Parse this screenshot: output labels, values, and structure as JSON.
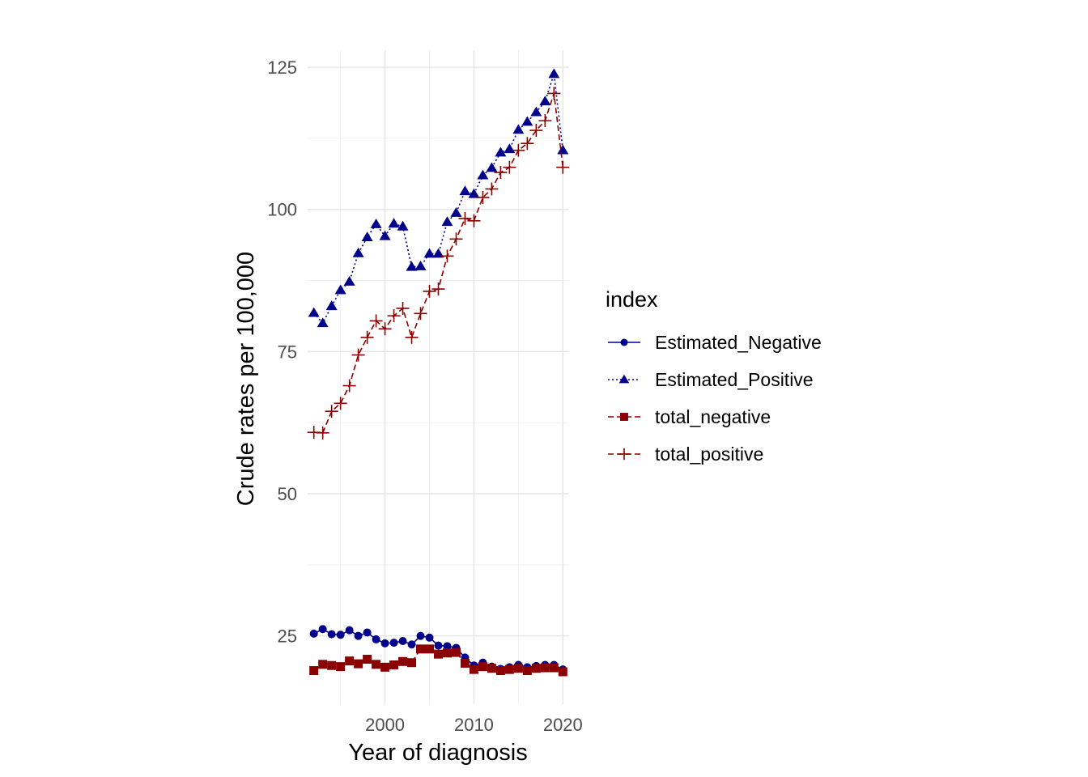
{
  "chart_data": {
    "type": "line",
    "xlabel": "Year of diagnosis",
    "ylabel": "Crude rates per 100,000",
    "xlim": [
      1991.3,
      2020.7
    ],
    "ylim": [
      13,
      128
    ],
    "x_ticks": [
      2000,
      2010,
      2020
    ],
    "y_ticks": [
      25,
      50,
      75,
      100,
      125
    ],
    "grid": true,
    "legend": {
      "title": "index",
      "position": "right",
      "entries": [
        "Estimated_Negative",
        "Estimated_Positive",
        "total_negative",
        "total_positive"
      ]
    },
    "x": [
      1992,
      1993,
      1994,
      1995,
      1996,
      1997,
      1998,
      1999,
      2000,
      2001,
      2002,
      2003,
      2004,
      2005,
      2006,
      2007,
      2008,
      2009,
      2010,
      2011,
      2012,
      2013,
      2014,
      2015,
      2016,
      2017,
      2018,
      2019,
      2020
    ],
    "series": [
      {
        "name": "Estimated_Negative",
        "color": "#00008B",
        "marker": "circle",
        "line": "solid",
        "values": [
          25.4,
          26.2,
          25.3,
          25.2,
          26.0,
          25.0,
          25.6,
          24.4,
          23.7,
          23.8,
          24.1,
          23.5,
          25.0,
          24.7,
          23.3,
          23.2,
          22.9,
          21.2,
          19.8,
          20.3,
          19.6,
          19.2,
          19.5,
          19.9,
          19.5,
          19.7,
          19.9,
          19.9,
          19.1
        ]
      },
      {
        "name": "Estimated_Positive",
        "color": "#00008B",
        "marker": "triangle",
        "line": "dotted",
        "values": [
          81.8,
          80.0,
          83.0,
          85.8,
          87.3,
          92.3,
          95.1,
          97.4,
          95.3,
          97.5,
          97.0,
          89.9,
          90.0,
          92.2,
          92.2,
          97.8,
          99.4,
          103.2,
          102.7,
          106.0,
          107.3,
          110.0,
          110.6,
          114.0,
          115.4,
          117.1,
          119.0,
          123.8,
          110.4
        ]
      },
      {
        "name": "total_negative",
        "color": "#8B0000",
        "marker": "square",
        "line": "dashed",
        "values": [
          18.9,
          20.0,
          19.8,
          19.6,
          20.6,
          20.1,
          20.9,
          20.0,
          19.5,
          19.9,
          20.5,
          20.3,
          22.7,
          22.7,
          21.8,
          22.0,
          22.1,
          20.2,
          19.1,
          19.6,
          19.3,
          18.9,
          19.1,
          19.3,
          18.9,
          19.3,
          19.4,
          19.4,
          18.7
        ]
      },
      {
        "name": "total_positive",
        "color": "#8B0000",
        "marker": "plus",
        "line": "dashed",
        "values": [
          60.8,
          60.7,
          64.5,
          65.9,
          69.0,
          74.4,
          77.5,
          80.4,
          79.0,
          81.3,
          82.6,
          77.5,
          81.7,
          85.6,
          86.0,
          91.8,
          94.8,
          98.4,
          98.0,
          102.1,
          103.6,
          106.5,
          107.4,
          110.4,
          111.6,
          113.9,
          115.6,
          120.4,
          107.4
        ]
      }
    ]
  }
}
